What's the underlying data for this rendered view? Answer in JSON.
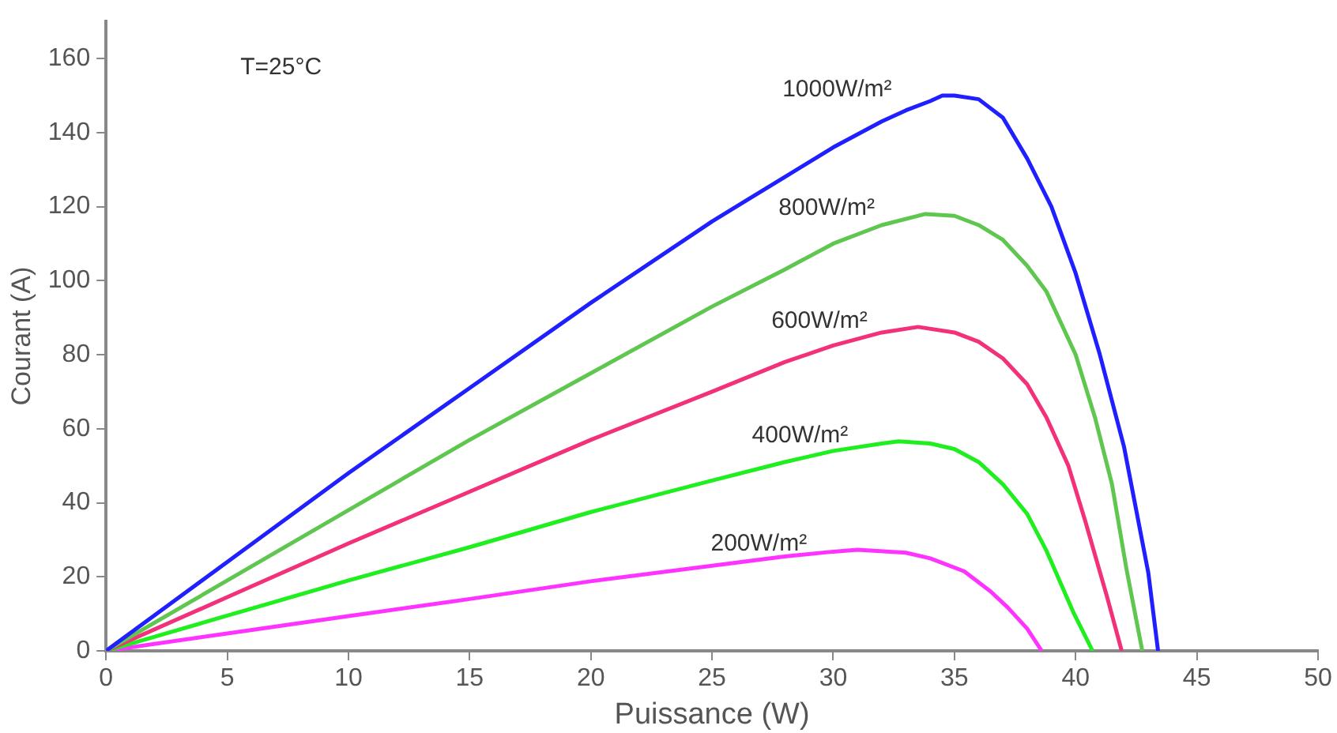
{
  "chart_data": {
    "type": "line",
    "xlabel": "Puissance (W)",
    "ylabel": "Courant (A)",
    "annotations": [
      "T=25°C"
    ],
    "xlim": [
      0,
      50
    ],
    "xticks": [
      0,
      5,
      10,
      15,
      20,
      25,
      30,
      35,
      40,
      45,
      50
    ],
    "ylim": [
      0,
      170
    ],
    "yticks": [
      0,
      20,
      40,
      60,
      80,
      100,
      120,
      140,
      160
    ],
    "grid": false,
    "legend": false,
    "series": [
      {
        "name": "1000W/m²",
        "color": "#1f1fff",
        "x": [
          0,
          5,
          10,
          15,
          20,
          25,
          28,
          30,
          32,
          33,
          34,
          34.5,
          35,
          36,
          37,
          38,
          39,
          40,
          41,
          42,
          43,
          43.4
        ],
        "values": [
          0,
          24,
          48,
          71,
          94,
          116,
          128,
          136,
          143,
          146,
          148.5,
          150,
          150,
          149,
          144,
          133,
          120,
          102,
          80,
          55,
          21,
          0
        ]
      },
      {
        "name": "800W/m²",
        "color": "#5fc64f",
        "x": [
          0,
          5,
          10,
          15,
          20,
          25,
          28,
          30,
          32,
          33.8,
          35,
          36,
          37,
          38,
          38.8,
          40,
          40.8,
          41.5,
          42.1,
          42.75
        ],
        "values": [
          0,
          19,
          38,
          57,
          75,
          93,
          103,
          110,
          115,
          118,
          117.5,
          115,
          111,
          104,
          97,
          80,
          63,
          45,
          22,
          0
        ]
      },
      {
        "name": "600W/m²",
        "color": "#f2317a",
        "x": [
          0,
          5,
          10,
          15,
          20,
          25,
          28,
          30,
          32,
          33.5,
          35,
          36,
          37,
          38,
          38.8,
          39.7,
          40.4,
          41.3,
          41.9
        ],
        "values": [
          0,
          14.5,
          29,
          43,
          57,
          70,
          78,
          82.5,
          86,
          87.5,
          86,
          83.5,
          79,
          72,
          63,
          50,
          35,
          14.5,
          0
        ]
      },
      {
        "name": "400W/m²",
        "color": "#1fee1f",
        "x": [
          0,
          5,
          10,
          15,
          20,
          25,
          28,
          30,
          32,
          32.7,
          34,
          35,
          36,
          37,
          38,
          38.8,
          39.9,
          40.7
        ],
        "values": [
          0,
          9.5,
          19,
          28,
          37.5,
          46,
          51,
          54,
          56,
          56.6,
          56,
          54.5,
          51,
          45,
          37,
          27,
          10.5,
          0
        ]
      },
      {
        "name": "200W/m²",
        "color": "#ff33ff",
        "x": [
          0,
          5,
          10,
          15,
          20,
          25,
          28,
          30,
          31,
          33,
          34,
          35.4,
          36.5,
          37.2,
          38,
          38.6
        ],
        "values": [
          0,
          4.7,
          9.4,
          14,
          18.8,
          23,
          25.5,
          26.8,
          27.3,
          26.5,
          25,
          21.5,
          16,
          11.7,
          6,
          0
        ]
      }
    ]
  }
}
